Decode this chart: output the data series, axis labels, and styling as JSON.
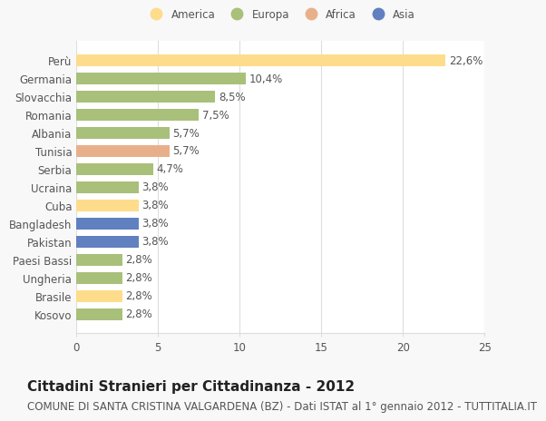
{
  "categories": [
    "Perù",
    "Germania",
    "Slovacchia",
    "Romania",
    "Albania",
    "Tunisia",
    "Serbia",
    "Ucraina",
    "Cuba",
    "Bangladesh",
    "Pakistan",
    "Paesi Bassi",
    "Ungheria",
    "Brasile",
    "Kosovo"
  ],
  "values": [
    22.6,
    10.4,
    8.5,
    7.5,
    5.7,
    5.7,
    4.7,
    3.8,
    3.8,
    3.8,
    3.8,
    2.8,
    2.8,
    2.8,
    2.8
  ],
  "labels": [
    "22,6%",
    "10,4%",
    "8,5%",
    "7,5%",
    "5,7%",
    "5,7%",
    "4,7%",
    "3,8%",
    "3,8%",
    "3,8%",
    "3,8%",
    "2,8%",
    "2,8%",
    "2,8%",
    "2,8%"
  ],
  "colors": [
    "#FDDC8C",
    "#A8C07A",
    "#A8C07A",
    "#A8C07A",
    "#A8C07A",
    "#E8B08A",
    "#A8C07A",
    "#A8C07A",
    "#FDDC8C",
    "#6080C0",
    "#6080C0",
    "#A8C07A",
    "#A8C07A",
    "#FDDC8C",
    "#A8C07A"
  ],
  "legend_labels": [
    "America",
    "Europa",
    "Africa",
    "Asia"
  ],
  "legend_colors": [
    "#FDDC8C",
    "#A8C07A",
    "#E8B08A",
    "#6080C0"
  ],
  "title": "Cittadini Stranieri per Cittadinanza - 2012",
  "subtitle": "COMUNE DI SANTA CRISTINA VALGARDENA (BZ) - Dati ISTAT al 1° gennaio 2012 - TUTTITALIA.IT",
  "xlim": [
    0,
    25
  ],
  "xticks": [
    0,
    5,
    10,
    15,
    20,
    25
  ],
  "background_color": "#F8F8F8",
  "bar_background": "#FFFFFF",
  "grid_color": "#DDDDDD",
  "title_fontsize": 11,
  "subtitle_fontsize": 8.5,
  "label_fontsize": 8.5,
  "tick_fontsize": 8.5,
  "bar_height": 0.65
}
